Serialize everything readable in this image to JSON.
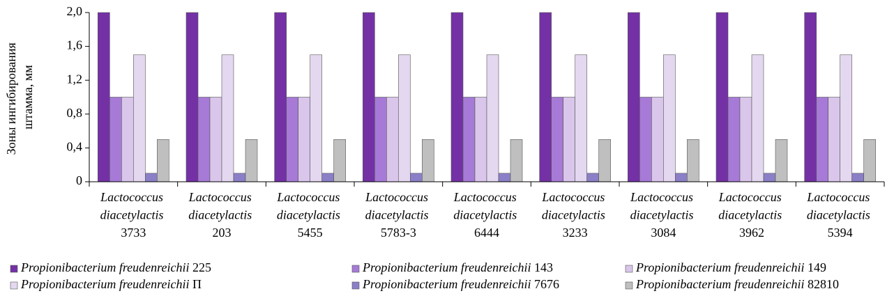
{
  "chart_data": {
    "type": "bar",
    "ylabel": "Зоны ингибирования штамма, мм",
    "categories": [
      "Lactococcus diacetylactis 3733",
      "Lactococcus diacetylactis 203",
      "Lactococcus diacetylactis 5455",
      "Lactococcus diacetylactis 5783-3",
      "Lactococcus diacetylactis 6444",
      "Lactococcus diacetylactis 3233",
      "Lactococcus diacetylactis 3084",
      "Lactococcus diacetylactis 3962",
      "Lactococcus diacetylactis 5394"
    ],
    "series": [
      {
        "name": "Propionibacterium freudenreichii 225",
        "color": "#7431a6",
        "values": [
          2.0,
          2.0,
          2.0,
          2.0,
          2.0,
          2.0,
          2.0,
          2.0,
          2.0
        ]
      },
      {
        "name": "Propionibacterium freudenreichii 143",
        "color": "#a67ad6",
        "values": [
          1.0,
          1.0,
          1.0,
          1.0,
          1.0,
          1.0,
          1.0,
          1.0,
          1.0
        ]
      },
      {
        "name": "Propionibacterium freudenreichii 149",
        "color": "#d9c6ea",
        "values": [
          1.0,
          1.0,
          1.0,
          1.0,
          1.0,
          1.0,
          1.0,
          1.0,
          1.0
        ]
      },
      {
        "name": "Propionibacterium freudenreichii П",
        "color": "#e4d8f0",
        "values": [
          1.5,
          1.5,
          1.5,
          1.5,
          1.5,
          1.5,
          1.5,
          1.5,
          1.5
        ]
      },
      {
        "name": "Propionibacterium freudenreichii 7676",
        "color": "#8b7fc8",
        "values": [
          0.1,
          0.1,
          0.1,
          0.1,
          0.1,
          0.1,
          0.1,
          0.1,
          0.1
        ]
      },
      {
        "name": "Propionibacterium freudenreichii 82810",
        "color": "#bfbfbf",
        "values": [
          0.5,
          0.5,
          0.5,
          0.5,
          0.5,
          0.5,
          0.5,
          0.5,
          0.5
        ]
      }
    ],
    "ylim": [
      0,
      2.0
    ],
    "yticks": [
      0,
      {
        "value": 0.4,
        "label": "0,4"
      },
      {
        "value": 0.8,
        "label": "0,8"
      },
      {
        "value": 1.2,
        "label": "1,2"
      },
      {
        "value": 1.6,
        "label": "1,6"
      },
      {
        "value": 2.0,
        "label": "2,0"
      }
    ],
    "legend": "bottom"
  }
}
